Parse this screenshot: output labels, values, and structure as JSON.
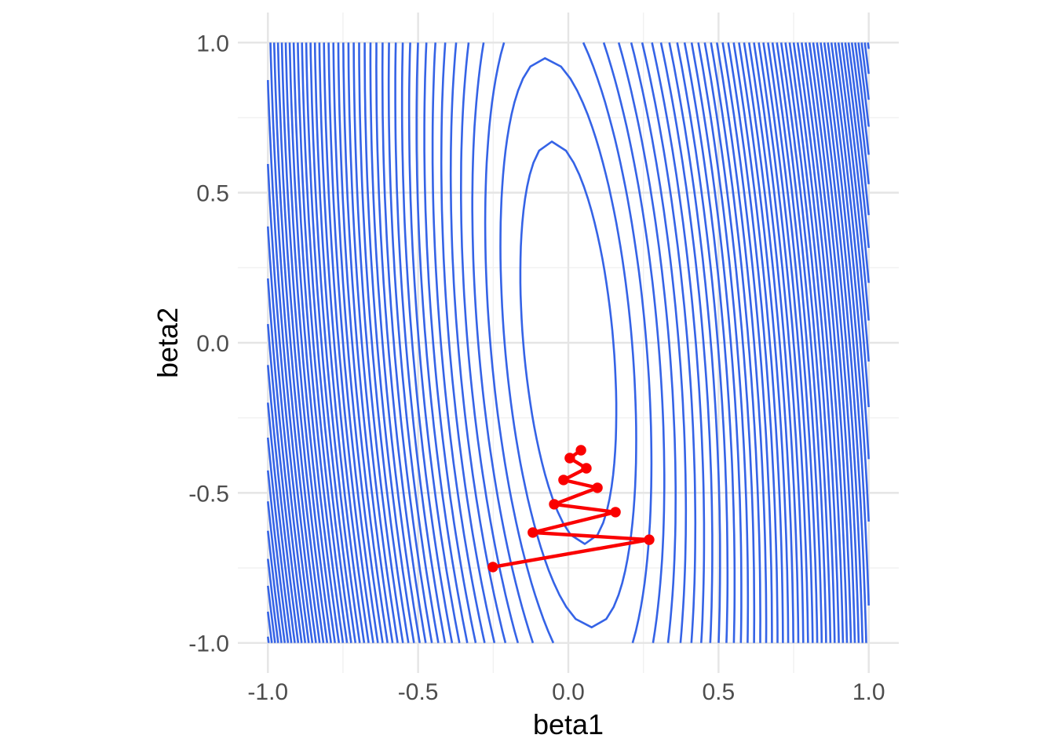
{
  "figure": {
    "background": "#FFFFFF"
  },
  "chart_data": {
    "type": "contour",
    "title": "",
    "xlabel": "beta1",
    "ylabel": "beta2",
    "xlim": [
      -1.1,
      1.1
    ],
    "ylim": [
      -1.1,
      1.1
    ],
    "x_ticks": [
      -1.0,
      -0.5,
      0.0,
      0.5,
      1.0
    ],
    "x_tick_labels": [
      "-1.0",
      "-0.5",
      "0.0",
      "0.5",
      "1.0"
    ],
    "y_ticks": [
      -1.0,
      -0.5,
      0.0,
      0.5,
      1.0
    ],
    "y_tick_labels": [
      "-1.0",
      "-0.5",
      "0.0",
      "0.5",
      "1.0"
    ],
    "minor_ticks": [
      -0.75,
      -0.25,
      0.25,
      0.75
    ],
    "grid": true,
    "legend": false,
    "contour_field": {
      "description": "f(beta1,beta2) = A*beta1^2 + C*beta1*beta2 + B*beta2^2, contour lines at levels k*level_step clipped to domain",
      "A": 1.0,
      "B": 0.0568,
      "C": 0.164,
      "level_step": 0.0225,
      "n_levels": 54,
      "domain_x": [
        -1,
        1
      ],
      "domain_y": [
        -1,
        1
      ],
      "color": "#3563E6",
      "stroke_width": 2.6,
      "inner_ellipse_y_extent": 0.67,
      "center": [
        0,
        0
      ]
    },
    "descent_path": {
      "description": "gradient descent iterates (beta1, beta2), start at bottom-left, zigzag converging upward",
      "color": "#FA0000",
      "stroke_width": 4.4,
      "point_radius": 6.7,
      "points": [
        [
          -0.251,
          -0.747
        ],
        [
          0.269,
          -0.656
        ],
        [
          -0.118,
          -0.632
        ],
        [
          0.157,
          -0.564
        ],
        [
          -0.047,
          -0.538
        ],
        [
          0.097,
          -0.483
        ],
        [
          -0.016,
          -0.457
        ],
        [
          0.06,
          -0.418
        ],
        [
          0.005,
          -0.384
        ],
        [
          0.042,
          -0.358
        ]
      ]
    },
    "style": {
      "grid_major_color": "#E5E5E5",
      "grid_minor_color": "#F1F1F1",
      "grid_major_width": 2.4,
      "grid_minor_width": 1.4,
      "tick_label_color": "#4D4D4D",
      "axis_title_color": "#000000",
      "panel_background": "#FFFFFF"
    }
  }
}
